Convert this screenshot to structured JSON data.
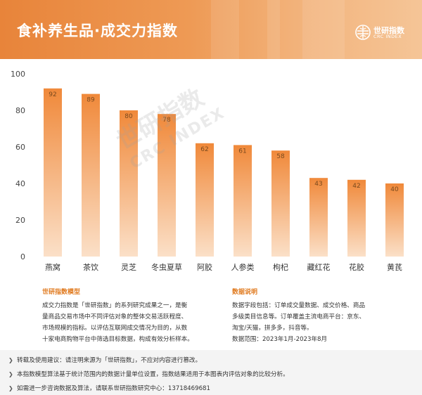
{
  "header": {
    "title": "食补养生品·成交力指数",
    "logo": {
      "name": "世研指数",
      "sub": "CRC INDEX"
    }
  },
  "watermark": {
    "line1": "世研指数",
    "line2": "CRC INDEX"
  },
  "chart_data": {
    "type": "bar",
    "title": "",
    "xlabel": "",
    "ylabel": "",
    "categories": [
      "燕窝",
      "茶饮",
      "灵芝",
      "冬虫夏草",
      "阿胶",
      "人参类",
      "枸杞",
      "藏红花",
      "花胶",
      "黄芪"
    ],
    "values": [
      92,
      89,
      80,
      78,
      62,
      61,
      58,
      43,
      42,
      40
    ],
    "ylim": [
      0,
      100
    ],
    "yticks": [
      0,
      20,
      40,
      60,
      80,
      100
    ],
    "grid": false,
    "legend": "none",
    "bar_color_top": "#f0893a",
    "bar_color_bottom": "#fbe0c8"
  },
  "notes": {
    "model": {
      "title": "世研指数模型",
      "lines": [
        "成交力指数是「世研指数」的系列研究成果之一，是衡",
        "量商品交易市场中不同评估对象的整体交易活跃程度、",
        "市场规模的指标。以评估互联网成交情况为目的，从数",
        "十家电商购物平台中筛选目标数据，构成有效分析样本。"
      ]
    },
    "data": {
      "title": "数据说明",
      "lines": [
        "数据字段包括：订单成交量数据、成交价格、商品",
        "多级类目信息等。订单覆盖主流电商平台：京东、",
        "淘宝/天猫，拼多多，抖音等。",
        "数据范围：2023年1月-2023年8月"
      ]
    }
  },
  "footer": {
    "lines": [
      "转载及使用建议：请注明来源为「世研指数」，不应对内容进行篡改。",
      "本指数模型算法基于统计范围内的数据计量单位设置，指数结果适用于本图表内评估对象的比较分析。",
      "如需进一步咨询数据及算法，请联系世研指数研究中心：13718469681"
    ]
  },
  "colors": {
    "accent": "#e07a1f",
    "header": "#ee9a55"
  }
}
